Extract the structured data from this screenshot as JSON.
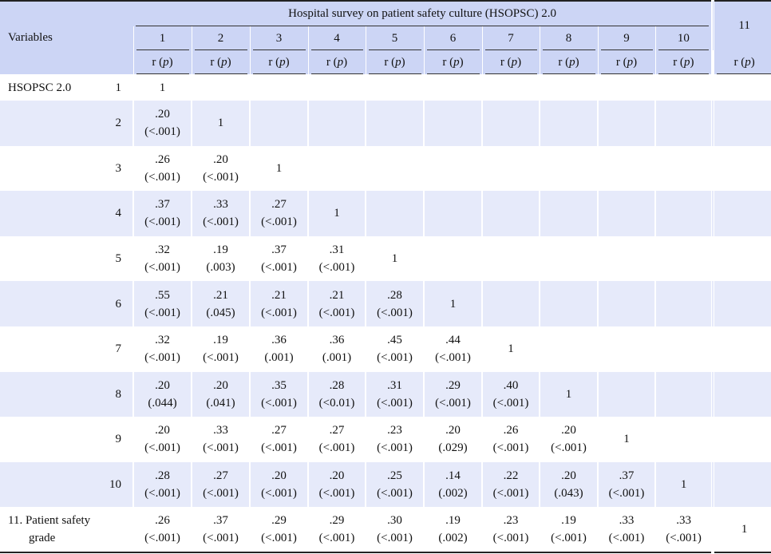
{
  "header": {
    "variables_label": "Variables",
    "group_title": "Hospital survey on patient safety culture (HSOPSC) 2.0",
    "columns": [
      "1",
      "2",
      "3",
      "4",
      "5",
      "6",
      "7",
      "8",
      "9",
      "10"
    ],
    "col11": "11",
    "stat_label": "r",
    "stat_p": "p"
  },
  "rows": [
    {
      "label": "HSOPSC  2.0",
      "idx": "1",
      "cells": [
        [
          "1",
          ""
        ]
      ]
    },
    {
      "label": "",
      "idx": "2",
      "cells": [
        [
          ".20",
          "(<.001)"
        ],
        [
          "1",
          ""
        ]
      ]
    },
    {
      "label": "",
      "idx": "3",
      "cells": [
        [
          ".26",
          "(<.001)"
        ],
        [
          ".20",
          "(<.001)"
        ],
        [
          "1",
          ""
        ]
      ]
    },
    {
      "label": "",
      "idx": "4",
      "cells": [
        [
          ".37",
          "(<.001)"
        ],
        [
          ".33",
          "(<.001)"
        ],
        [
          ".27",
          "(<.001)"
        ],
        [
          "1",
          ""
        ]
      ]
    },
    {
      "label": "",
      "idx": "5",
      "cells": [
        [
          ".32",
          "(<.001)"
        ],
        [
          ".19",
          "(.003)"
        ],
        [
          ".37",
          "(<.001)"
        ],
        [
          ".31",
          "(<.001)"
        ],
        [
          "1",
          ""
        ]
      ]
    },
    {
      "label": "",
      "idx": "6",
      "cells": [
        [
          ".55",
          "(<.001)"
        ],
        [
          ".21",
          "(.045)"
        ],
        [
          ".21",
          "(<.001)"
        ],
        [
          ".21",
          "(<.001)"
        ],
        [
          ".28",
          "(<.001)"
        ],
        [
          "1",
          ""
        ]
      ]
    },
    {
      "label": "",
      "idx": "7",
      "cells": [
        [
          ".32",
          "(<.001)"
        ],
        [
          ".19",
          "(<.001)"
        ],
        [
          ".36",
          "(.001)"
        ],
        [
          ".36",
          "(.001)"
        ],
        [
          ".45",
          "(<.001)"
        ],
        [
          ".44",
          "(<.001)"
        ],
        [
          "1",
          ""
        ]
      ]
    },
    {
      "label": "",
      "idx": "8",
      "cells": [
        [
          ".20",
          "(.044)"
        ],
        [
          ".20",
          "(.041)"
        ],
        [
          ".35",
          "(<.001)"
        ],
        [
          ".28",
          "(<0.01)"
        ],
        [
          ".31",
          "(<.001)"
        ],
        [
          ".29",
          "(<.001)"
        ],
        [
          ".40",
          "(<.001)"
        ],
        [
          "1",
          ""
        ]
      ]
    },
    {
      "label": "",
      "idx": "9",
      "cells": [
        [
          ".20",
          "(<.001)"
        ],
        [
          ".33",
          "(<.001)"
        ],
        [
          ".27",
          "(<.001)"
        ],
        [
          ".27",
          "(<.001)"
        ],
        [
          ".23",
          "(<.001)"
        ],
        [
          ".20",
          "(.029)"
        ],
        [
          ".26",
          "(<.001)"
        ],
        [
          ".20",
          "(<.001)"
        ],
        [
          "1",
          ""
        ]
      ]
    },
    {
      "label": "",
      "idx": "10",
      "cells": [
        [
          ".28",
          "(<.001)"
        ],
        [
          ".27",
          "(<.001)"
        ],
        [
          ".20",
          "(<.001)"
        ],
        [
          ".20",
          "(<.001)"
        ],
        [
          ".25",
          "(<.001)"
        ],
        [
          ".14",
          "(.002)"
        ],
        [
          ".22",
          "(<.001)"
        ],
        [
          ".20",
          "(.043)"
        ],
        [
          ".37",
          "(<.001)"
        ],
        [
          "1",
          ""
        ]
      ]
    }
  ],
  "last_row": {
    "label_line1": "11. Patient safety",
    "label_line2": "grade",
    "cells": [
      [
        ".26",
        "(<.001)"
      ],
      [
        ".37",
        "(<.001)"
      ],
      [
        ".29",
        "(<.001)"
      ],
      [
        ".29",
        "(<.001)"
      ],
      [
        ".30",
        "(<.001)"
      ],
      [
        ".19",
        "(.002)"
      ],
      [
        ".23",
        "(<.001)"
      ],
      [
        ".19",
        "(<.001)"
      ],
      [
        ".33",
        "(<.001)"
      ],
      [
        ".33",
        "(<.001)"
      ],
      [
        "1",
        ""
      ]
    ]
  },
  "colors": {
    "header_bg": "#ccd5f5",
    "shade_bg": "#e6eafa"
  }
}
